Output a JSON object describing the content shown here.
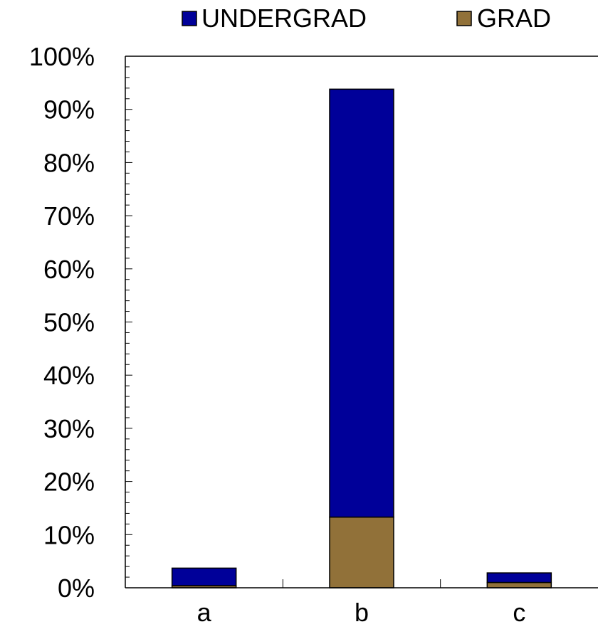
{
  "chart_data": {
    "type": "bar",
    "stacked": true,
    "categories": [
      "a",
      "b",
      "c"
    ],
    "series": [
      {
        "name": "UNDERGRAD",
        "color": "#000099",
        "values": [
          3.3,
          80.5,
          1.8
        ]
      },
      {
        "name": "GRAD",
        "color": "#917139",
        "values": [
          0.4,
          13.3,
          1.0
        ]
      }
    ],
    "title": "",
    "xlabel": "",
    "ylabel": "",
    "ylim": [
      0,
      100
    ],
    "y_ticks": [
      "0%",
      "10%",
      "20%",
      "30%",
      "40%",
      "50%",
      "60%",
      "70%",
      "80%",
      "90%",
      "100%"
    ],
    "legend_position": "top",
    "grid": false
  }
}
